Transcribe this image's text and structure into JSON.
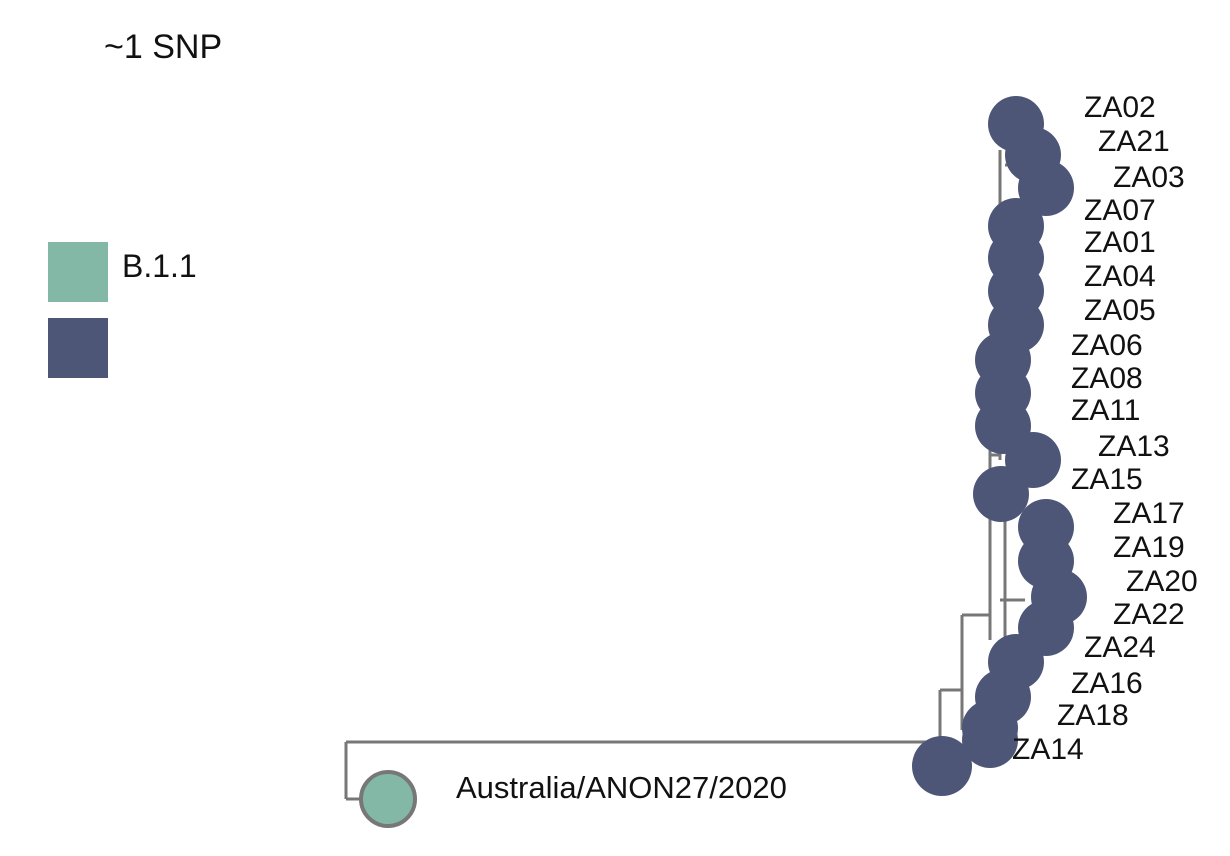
{
  "scale": {
    "label": "~1 SNP"
  },
  "legend": {
    "items": [
      {
        "label": "B.1.1",
        "color": "#84b8a6"
      },
      {
        "label": "",
        "color": "#4e5678"
      }
    ]
  },
  "tree": {
    "branch_color": "#777777",
    "outgroup": {
      "label": "Australia/ANON27/2020",
      "color": "#84b8a6"
    },
    "root_node_color": "#4e5678",
    "tips": [
      {
        "label": "ZA02",
        "color": "#4e5678"
      },
      {
        "label": "ZA21",
        "color": "#4e5678"
      },
      {
        "label": "ZA03",
        "color": "#4e5678"
      },
      {
        "label": "ZA07",
        "color": "#4e5678"
      },
      {
        "label": "ZA01",
        "color": "#4e5678"
      },
      {
        "label": "ZA04",
        "color": "#4e5678"
      },
      {
        "label": "ZA05",
        "color": "#4e5678"
      },
      {
        "label": "ZA06",
        "color": "#4e5678"
      },
      {
        "label": "ZA08",
        "color": "#4e5678"
      },
      {
        "label": "ZA11",
        "color": "#4e5678"
      },
      {
        "label": "ZA13",
        "color": "#4e5678"
      },
      {
        "label": "ZA15",
        "color": "#4e5678"
      },
      {
        "label": "ZA17",
        "color": "#4e5678"
      },
      {
        "label": "ZA19",
        "color": "#4e5678"
      },
      {
        "label": "ZA20",
        "color": "#4e5678"
      },
      {
        "label": "ZA22",
        "color": "#4e5678"
      },
      {
        "label": "ZA24",
        "color": "#4e5678"
      },
      {
        "label": "ZA16",
        "color": "#4e5678"
      },
      {
        "label": "ZA18",
        "color": "#4e5678"
      },
      {
        "label": "ZA14",
        "color": "#4e5678"
      }
    ]
  }
}
